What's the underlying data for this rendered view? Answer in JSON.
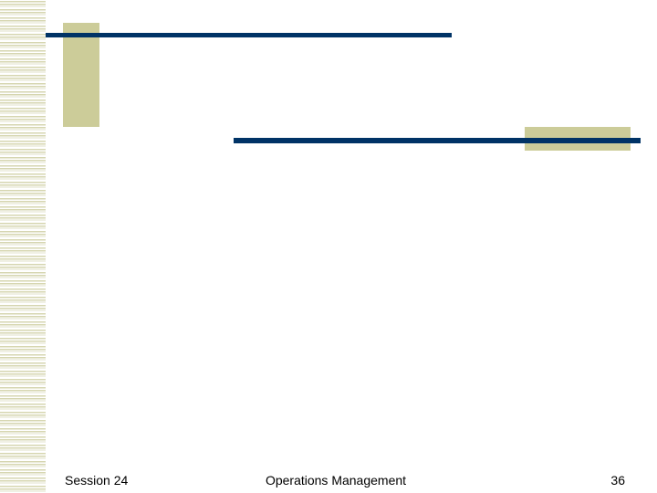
{
  "footer": {
    "left": "Session 24",
    "center": "Operations Management",
    "right": "36"
  }
}
